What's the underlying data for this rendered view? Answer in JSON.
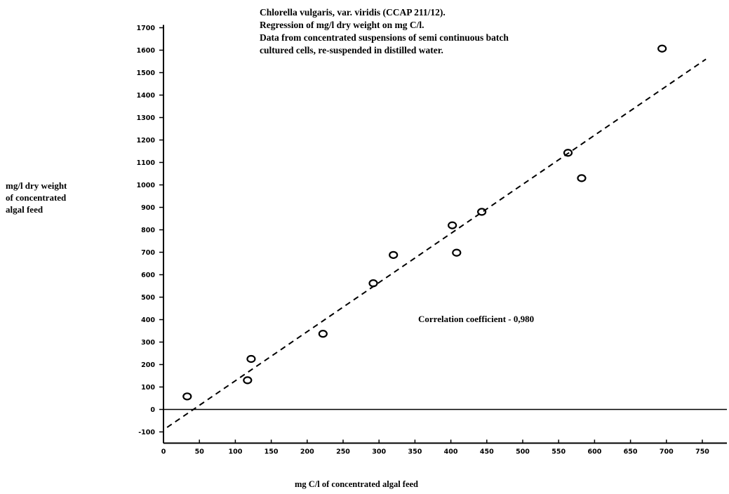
{
  "chart_data": {
    "type": "scatter",
    "title_lines": [
      "Chlorella vulgaris, var. viridis (CCAP 211/12).",
      "Regression of mg/l dry weight on mg C/l.",
      "Data from concentrated suspensions of semi continuous batch",
      "cultured cells, re-suspended in distilled water."
    ],
    "xlabel": "mg C/l of concentrated algal feed",
    "ylabel_lines": [
      "mg/l dry weight",
      "of concentrated",
      "algal feed"
    ],
    "annotation": "Correlation coefficient - 0,980",
    "xlim": [
      0,
      780
    ],
    "ylim": [
      -150,
      1700
    ],
    "x_ticks": [
      0,
      50,
      100,
      150,
      200,
      250,
      300,
      350,
      400,
      450,
      500,
      550,
      600,
      650,
      700,
      750
    ],
    "y_ticks": [
      -100,
      0,
      100,
      200,
      300,
      400,
      500,
      600,
      700,
      800,
      900,
      1000,
      1100,
      1200,
      1300,
      1400,
      1500,
      1600,
      1700
    ],
    "points": [
      {
        "x": 33,
        "y": 58
      },
      {
        "x": 117,
        "y": 130
      },
      {
        "x": 122,
        "y": 225
      },
      {
        "x": 222,
        "y": 337
      },
      {
        "x": 292,
        "y": 562
      },
      {
        "x": 320,
        "y": 688
      },
      {
        "x": 402,
        "y": 820
      },
      {
        "x": 408,
        "y": 698
      },
      {
        "x": 443,
        "y": 880
      },
      {
        "x": 563,
        "y": 1143
      },
      {
        "x": 582,
        "y": 1030
      },
      {
        "x": 694,
        "y": 1607
      }
    ],
    "regression_line": {
      "x_start": 5,
      "y_start": -80,
      "x_end": 755,
      "y_end": 1560,
      "style": "dashed"
    },
    "grid": false,
    "legend": "none"
  }
}
